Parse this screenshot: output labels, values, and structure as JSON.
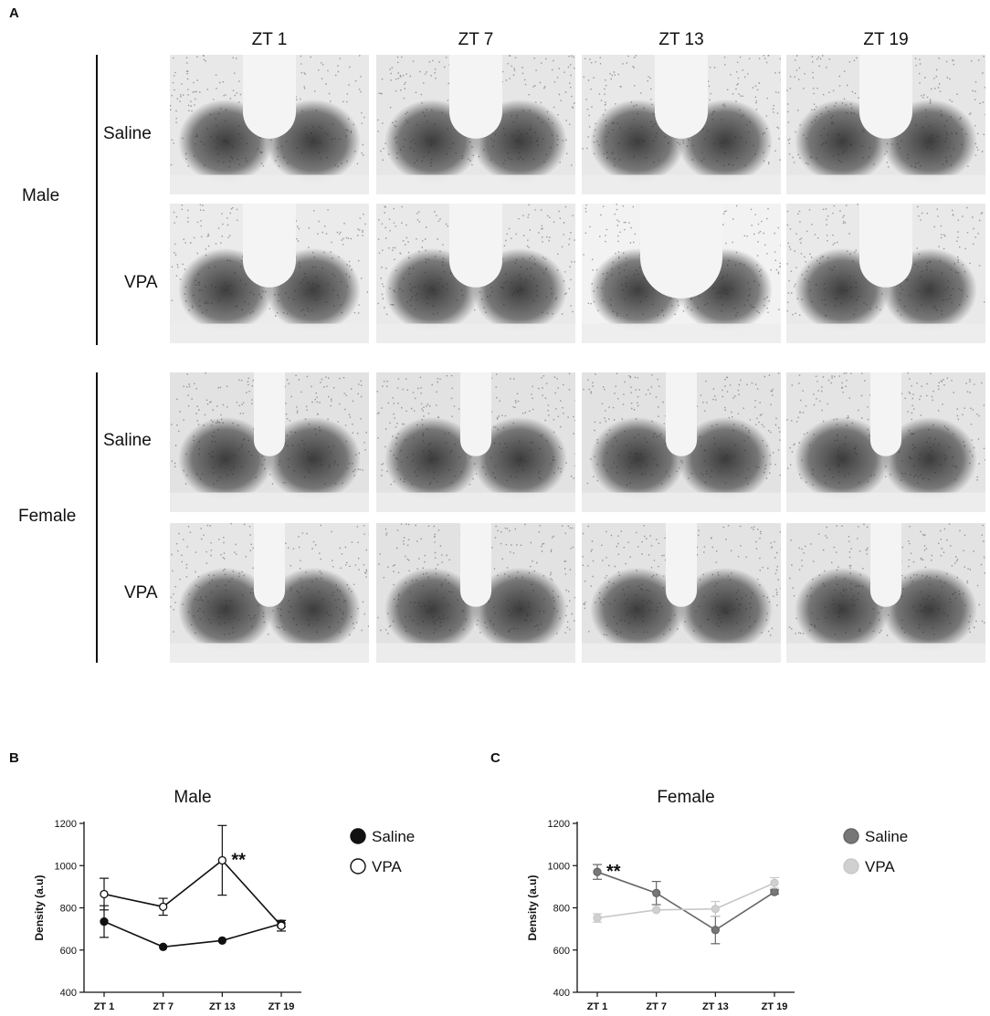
{
  "figure": {
    "panel_a": "A",
    "panel_b": "B",
    "panel_c": "C",
    "columns": [
      "ZT 1",
      "ZT 7",
      "ZT 13",
      "ZT 19"
    ],
    "sexes": [
      {
        "label": "Male",
        "rows": [
          "Saline",
          "VPA"
        ]
      },
      {
        "label": "Female",
        "rows": [
          "Saline",
          "VPA"
        ]
      }
    ],
    "micrographs": [
      [
        {
          "fill": "#e8e8e8",
          "stain": "#1e1e1e"
        },
        {
          "fill": "#e6e6e6",
          "stain": "#1e1e1e"
        },
        {
          "fill": "#e8e8e8",
          "stain": "#1e1e1e"
        },
        {
          "fill": "#e6e6e6",
          "stain": "#1e1e1e"
        }
      ],
      [
        {
          "fill": "#ebebeb",
          "stain": "#1e1e1e"
        },
        {
          "fill": "#e9e9e9",
          "stain": "#1e1e1e"
        },
        {
          "fill": "#f2f2f2",
          "stain": "#1e1e1e"
        },
        {
          "fill": "#e9e9e9",
          "stain": "#1e1e1e"
        }
      ],
      [
        {
          "fill": "#e2e2e2",
          "stain": "#1e1e1e"
        },
        {
          "fill": "#e2e2e2",
          "stain": "#1e1e1e"
        },
        {
          "fill": "#e2e2e2",
          "stain": "#1e1e1e"
        },
        {
          "fill": "#e4e4e4",
          "stain": "#1e1e1e"
        }
      ],
      [
        {
          "fill": "#e6e6e6",
          "stain": "#1e1e1e"
        },
        {
          "fill": "#e2e2e2",
          "stain": "#1e1e1e"
        },
        {
          "fill": "#e3e3e3",
          "stain": "#1e1e1e"
        },
        {
          "fill": "#e3e3e3",
          "stain": "#1e1e1e"
        }
      ]
    ]
  },
  "chart_data": [
    {
      "type": "line",
      "title": "Male",
      "xlabel": "",
      "ylabel": "Density (a.u)",
      "categories": [
        "ZT 1",
        "ZT 7",
        "ZT 13",
        "ZT 19"
      ],
      "ylim": [
        400,
        1200
      ],
      "yticks": [
        "400",
        "600",
        "800",
        "1000",
        "1200"
      ],
      "legend_position": "right",
      "series": [
        {
          "name": "Saline",
          "values": [
            735,
            615,
            645,
            725
          ],
          "errors": [
            75,
            0,
            0,
            15
          ],
          "color": "#111111",
          "marker_fill": "#111111"
        },
        {
          "name": "VPA",
          "values": [
            865,
            805,
            1025,
            715
          ],
          "errors": [
            75,
            40,
            165,
            25
          ],
          "color": "#111111",
          "marker_fill": "#ffffff"
        }
      ],
      "annotations": [
        {
          "text": "**",
          "category": "ZT 13"
        }
      ]
    },
    {
      "type": "line",
      "title": "Female",
      "xlabel": "",
      "ylabel": "Density (a.u)",
      "categories": [
        "ZT 1",
        "ZT 7",
        "ZT 13",
        "ZT 19"
      ],
      "ylim": [
        400,
        1200
      ],
      "yticks": [
        "400",
        "600",
        "800",
        "1000",
        "1200"
      ],
      "legend_position": "right",
      "series": [
        {
          "name": "Saline",
          "values": [
            970,
            870,
            695,
            875
          ],
          "errors": [
            35,
            55,
            65,
            10
          ],
          "color": "#666666",
          "marker_fill": "#777777"
        },
        {
          "name": "VPA",
          "values": [
            752,
            790,
            795,
            918
          ],
          "errors": [
            20,
            0,
            35,
            25
          ],
          "color": "#c8c8c8",
          "marker_fill": "#d0d0d0"
        }
      ],
      "annotations": [
        {
          "text": "**",
          "category": "ZT 1"
        }
      ]
    }
  ]
}
